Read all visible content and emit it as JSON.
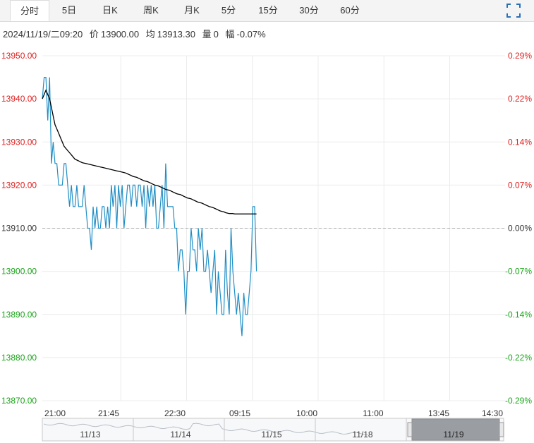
{
  "tabs": [
    {
      "label": "分时",
      "active": true
    },
    {
      "label": "5日"
    },
    {
      "label": "日K"
    },
    {
      "label": "周K"
    },
    {
      "label": "月K"
    },
    {
      "label": "5分"
    },
    {
      "label": "15分"
    },
    {
      "label": "30分"
    },
    {
      "label": "60分"
    }
  ],
  "info": {
    "datetime": "2024/11/19/二09:20",
    "price_label": "价",
    "price": "13900.00",
    "avg_label": "均",
    "avg": "13913.30",
    "volume_label": "量",
    "volume": "0",
    "change_label": "幅",
    "change": "-0.07%"
  },
  "colors": {
    "price_line": "#1f8ec5",
    "avg_line": "#000000",
    "up": "#e02020",
    "down": "#1aa31a",
    "grid": "#ececec",
    "baseline": "#aaaaaa"
  },
  "chart_data": {
    "type": "line",
    "x_ticks": [
      "21:00",
      "21:45",
      "22:30",
      "09:15",
      "10:00",
      "11:00",
      "13:45",
      "14:30"
    ],
    "y_ticks_left": [
      "13950.00",
      "13940.00",
      "13930.00",
      "13920.00",
      "13910.00",
      "13900.00",
      "13890.00",
      "13880.00",
      "13870.00"
    ],
    "y_ticks_right": [
      "0.29%",
      "0.22%",
      "0.14%",
      "0.07%",
      "0.00%",
      "-0.07%",
      "-0.14%",
      "-0.22%",
      "-0.29%"
    ],
    "ylim": [
      13870,
      13950
    ],
    "xlim": [
      0,
      255
    ],
    "baseline": 13910,
    "series": [
      {
        "values": [
          13940,
          13945,
          13945,
          13935,
          13945,
          13925,
          13930,
          13925,
          13925,
          13920,
          13920,
          13920,
          13925,
          13925,
          13920,
          13915,
          13920,
          13915,
          13915,
          13920,
          13915,
          13915,
          13915,
          13920,
          13915,
          13910,
          13910,
          13905,
          13915,
          13910,
          13915,
          13910,
          13910,
          13915,
          13915,
          13910,
          13915,
          13910,
          13920,
          13915,
          13920,
          13910,
          13920,
          13915,
          13920,
          13910,
          13915,
          13920,
          13920,
          13915,
          13920,
          13920,
          13915,
          13920,
          13920,
          13915,
          13920,
          13910,
          13920,
          13915,
          13920,
          13915,
          13920,
          13910,
          13910,
          13915,
          13920,
          13910,
          13925,
          13915,
          13915,
          13915,
          13915,
          13910,
          13910,
          13900,
          13905,
          13905,
          13900,
          13890,
          13900,
          13900,
          13910,
          13905,
          13905,
          13900,
          13910,
          13905,
          13910,
          13900,
          13900,
          13905,
          13900,
          13895,
          13900,
          13905,
          13890,
          13900,
          13895,
          13890,
          13890,
          13905,
          13895,
          13890,
          13910,
          13900,
          13895,
          13890,
          13895,
          13890,
          13885,
          13895,
          13890,
          13890,
          13895,
          13900,
          13915,
          13915,
          13900
        ],
        "color_key": "price_line"
      },
      {
        "values": [
          13940,
          13941,
          13942,
          13941,
          13940,
          13938,
          13936,
          13934,
          13933,
          13932,
          13931,
          13930,
          13929,
          13928.5,
          13928,
          13927.5,
          13927,
          13926.5,
          13926,
          13925.8,
          13925.6,
          13925.4,
          13925.2,
          13925.1,
          13925,
          13924.9,
          13924.8,
          13924.7,
          13924.6,
          13924.5,
          13924.4,
          13924.3,
          13924.2,
          13924.1,
          13924,
          13923.9,
          13923.8,
          13923.7,
          13923.6,
          13923.5,
          13923.4,
          13923.3,
          13923.2,
          13923.1,
          13923,
          13922.9,
          13922.8,
          13922.6,
          13922.4,
          13922.2,
          13922,
          13921.9,
          13921.8,
          13921.6,
          13921.4,
          13921.2,
          13921,
          13920.9,
          13920.8,
          13920.6,
          13920.4,
          13920.2,
          13920,
          13919.9,
          13919.8,
          13919.6,
          13919.4,
          13919.2,
          13919,
          13918.9,
          13918.8,
          13918.6,
          13918.4,
          13918.2,
          13918,
          13917.9,
          13917.8,
          13917.6,
          13917.4,
          13917.2,
          13917,
          13916.9,
          13916.8,
          13916.6,
          13916.4,
          13916.2,
          13916,
          13915.9,
          13915.8,
          13915.6,
          13915.4,
          13915.2,
          13915,
          13914.9,
          13914.8,
          13914.6,
          13914.4,
          13914.2,
          13914,
          13913.9,
          13913.8,
          13913.6,
          13913.5,
          13913.4,
          13913.4,
          13913.4,
          13913.3,
          13913.3,
          13913.3,
          13913.3,
          13913.3,
          13913.3,
          13913.3,
          13913.3,
          13913.3,
          13913.3,
          13913.3,
          13913.3,
          13913.3
        ],
        "color_key": "avg_line"
      }
    ],
    "grid": true
  },
  "navigator": {
    "dates": [
      "11/13",
      "11/14",
      "11/15",
      "11/18",
      "11/19"
    ],
    "selected": "11/19"
  },
  "icons": {
    "fullscreen": "expand-corners-icon"
  }
}
